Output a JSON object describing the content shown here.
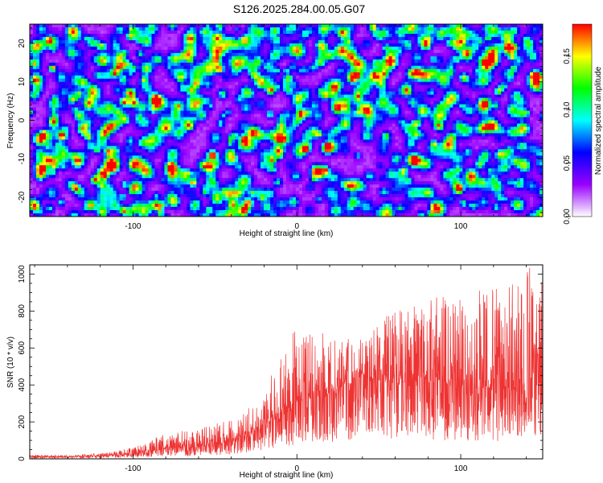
{
  "title": "S126.2025.284.00.05.G07",
  "chart_data": [
    {
      "type": "heatmap",
      "xlabel": "Height of straight line (km)",
      "ylabel": "Frequency (Hz)",
      "xlim": [
        -163,
        150
      ],
      "ylim": [
        -25,
        25
      ],
      "xticks": [
        -100,
        0,
        100
      ],
      "yticks": [
        -20,
        -10,
        0,
        10,
        20
      ],
      "colorbar": {
        "label": "Normalized spectral amplitude",
        "range": [
          0.0,
          0.18
        ],
        "ticks": [
          "0.00",
          "0.05",
          "0.10",
          "0.15"
        ],
        "tick_values": [
          0.0,
          0.05,
          0.1,
          0.15
        ],
        "colors": [
          "#ffffff",
          "#9900ff",
          "#0000ff",
          "#00ffff",
          "#00ff00",
          "#ffff00",
          "#ff0000"
        ]
      }
    },
    {
      "type": "line",
      "xlabel": "Height of straight line (km)",
      "ylabel": "SNR (10 * v/v)",
      "xlim": [
        -163,
        150
      ],
      "ylim": [
        0,
        1050
      ],
      "xticks": [
        -100,
        0,
        100
      ],
      "yticks": [
        0,
        200,
        400,
        600,
        800,
        1000
      ],
      "line_color": "#ee3333",
      "envelope": {
        "x": [
          -163,
          -140,
          -120,
          -100,
          -80,
          -60,
          -40,
          -20,
          -10,
          0,
          20,
          40,
          60,
          80,
          100,
          120,
          140,
          150
        ],
        "mean": [
          12,
          10,
          15,
          25,
          55,
          65,
          90,
          170,
          250,
          300,
          350,
          440,
          410,
          420,
          390,
          370,
          370,
          380
        ],
        "peak": [
          22,
          20,
          30,
          60,
          140,
          170,
          210,
          330,
          620,
          700,
          680,
          650,
          820,
          880,
          900,
          920,
          1050,
          980
        ]
      }
    }
  ]
}
